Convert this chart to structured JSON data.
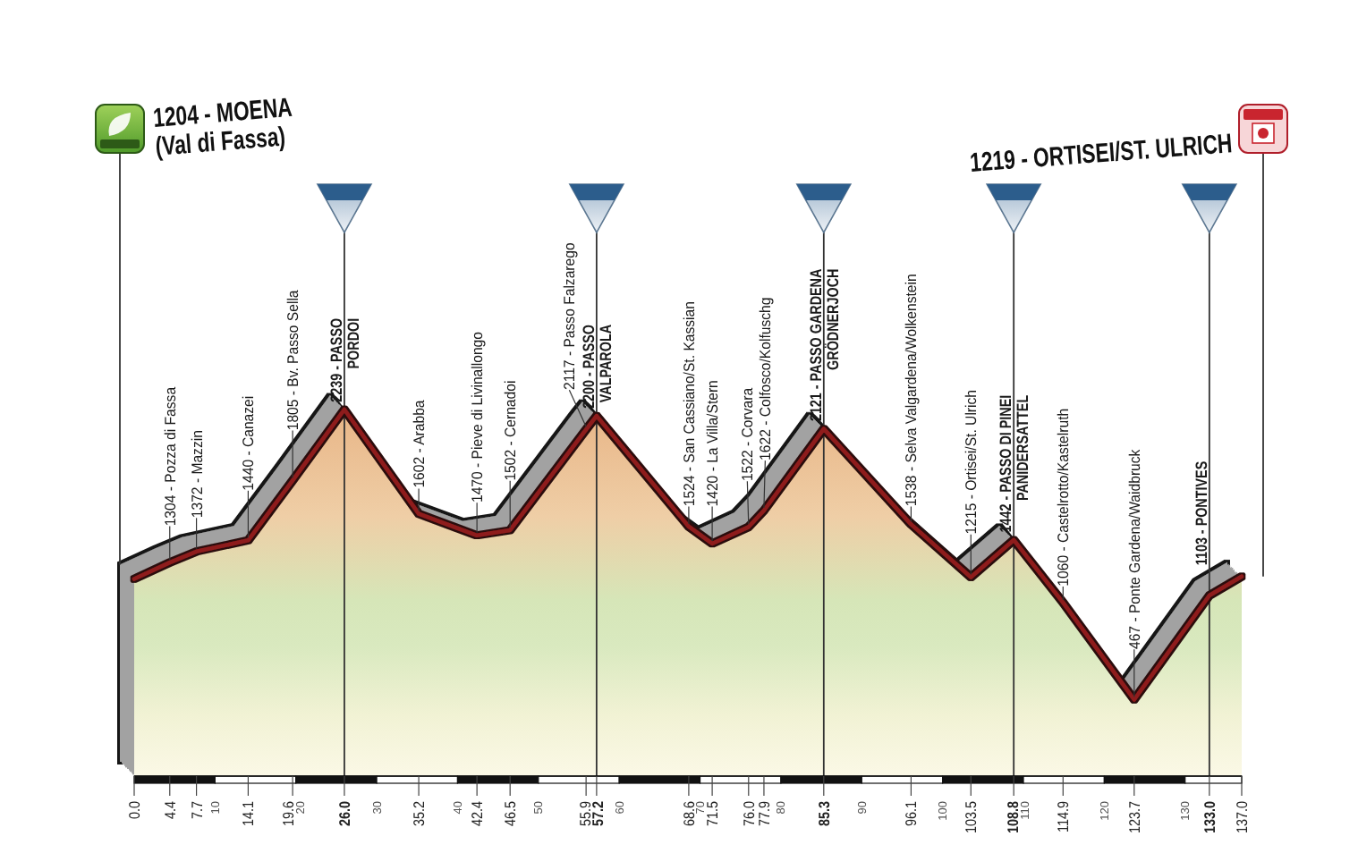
{
  "chart_data": {
    "type": "area",
    "x": [
      0,
      4.4,
      7.7,
      14.1,
      19.6,
      26,
      35.2,
      42.4,
      46.5,
      55.9,
      57.2,
      68.6,
      71.5,
      76,
      77.9,
      85.3,
      96.1,
      103.5,
      108.8,
      114.9,
      123.7,
      133,
      137
    ],
    "values": [
      1204,
      1304,
      1372,
      1440,
      1805,
      2239,
      1602,
      1470,
      1502,
      2117,
      2200,
      1524,
      1420,
      1522,
      1622,
      2121,
      1538,
      1215,
      1442,
      1060,
      467,
      1103,
      1219
    ],
    "value_labels": [
      null,
      "1304 - Pozza di Fassa",
      "1372 - Mazzin",
      "1440 - Canazei",
      "1805 - Bv. Passo Sella",
      "2239 - PASSO\nPORDOI",
      "1602 - Arabba",
      "1470 - Pieve di Livinallongo",
      "1502 - Cernadoi",
      "2117 - Passo Falzarego",
      "2200 - PASSO\nVALPAROLA",
      "1524 - San Cassiano/St. Kassian",
      "1420 - La Villa/Stern",
      "1522 - Corvara",
      "1622 - Colfosco/Kolfuschg",
      "2121 - PASSO GARDENA\nGRÖDNERJOCH",
      "1538 - Selva Valgardena/Wolkenstein",
      "1215 - Ortisei/St. Ulrich",
      "1442 - PASSO DI PINEI\nPANIDERSATTEL",
      "1060 - Castelrotto/Kastelruth",
      "467 - Ponte Gardena/Waidbruck",
      "1103 - PONTIVES",
      null
    ],
    "annotations": [
      "1204 - MOENA\n(Val di Fassa)",
      "1219 - ORTISEI/ST. ULRICH"
    ],
    "color": "#8e1b1b",
    "xlim": [
      0,
      137
    ],
    "xticks": [
      {
        "value": 0,
        "label": "0.0"
      },
      4.4,
      7.7,
      10,
      14.1,
      19.6,
      20,
      {
        "value": 26,
        "label": "26.0"
      },
      30,
      35.2,
      40,
      42.4,
      46.5,
      50,
      55.9,
      57.2,
      60,
      68.6,
      70,
      71.5,
      {
        "value": 76,
        "label": "76.0"
      },
      77.9,
      80,
      85.3,
      90,
      96.1,
      100,
      103.5,
      108.8,
      110,
      114.9,
      120,
      123.7,
      130,
      {
        "value": 133,
        "label": "133.0"
      },
      {
        "value": 137,
        "label": "137.0"
      }
    ],
    "tick_labels": "x",
    "ref_lines": [
      {
        "axis": "x",
        "value": 26
      },
      {
        "axis": "x",
        "value": 57.2
      },
      {
        "axis": "x",
        "value": 85.3
      },
      {
        "axis": "x",
        "value": 108.8
      },
      {
        "axis": "x",
        "value": 133
      }
    ]
  }
}
